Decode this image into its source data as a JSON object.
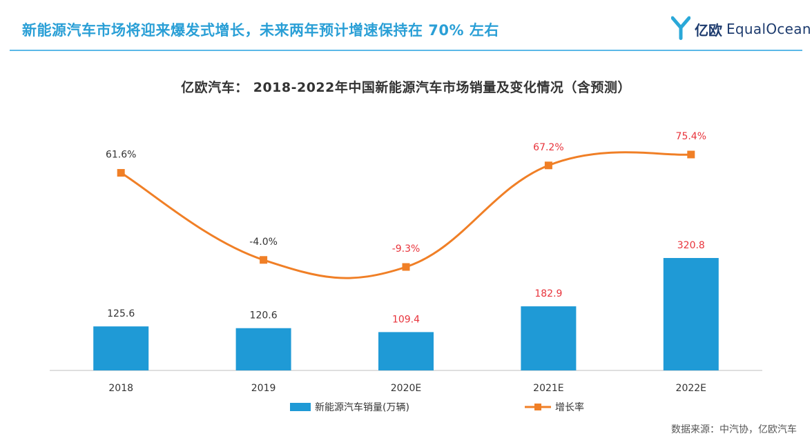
{
  "header": {
    "title": "新能源汽车市场将迎来爆发式增长，未来两年预计增速保持在 70% 左右",
    "brand_cn": "亿欧",
    "brand_en": "EqualOcean"
  },
  "source": "数据来源：中汽协，亿欧汽车",
  "colors": {
    "bar": "#1f9ad6",
    "line": "#f07f26",
    "label_default": "#333333",
    "label_forecast": "#e8333b",
    "header_blue": "#2a9fd6"
  },
  "chart_data": {
    "type": "bar",
    "title": "亿欧汽车： 2018-2022年中国新能源汽车市场销量及变化情况（含预测）",
    "categories": [
      "2018",
      "2019",
      "2020E",
      "2021E",
      "2022E"
    ],
    "series": [
      {
        "name": "新能源汽车销量(万辆)",
        "type": "bar",
        "values": [
          125.6,
          120.6,
          109.4,
          182.9,
          320.8
        ],
        "labels": [
          "125.6",
          "120.6",
          "109.4",
          "182.9",
          "320.8"
        ]
      },
      {
        "name": "增长率",
        "type": "line",
        "values": [
          61.6,
          -4.0,
          -9.3,
          67.2,
          75.4
        ],
        "labels": [
          "61.6%",
          "-4.0%",
          "-9.3%",
          "67.2%",
          "75.4%"
        ]
      }
    ],
    "forecast_flags": [
      false,
      false,
      true,
      true,
      true
    ],
    "legend_position": "bottom",
    "grid": false
  }
}
